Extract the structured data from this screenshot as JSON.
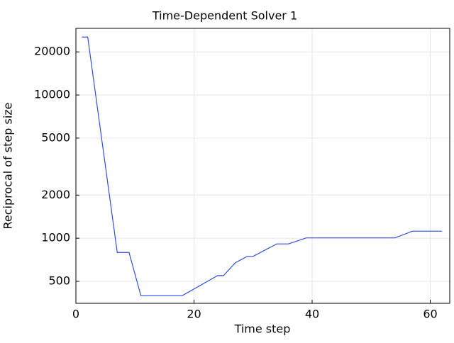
{
  "chart_data": {
    "type": "line",
    "title": "Time-Dependent Solver 1",
    "x_label": "Time step",
    "y_label": "Reciprocal of step size",
    "x": [
      1,
      2,
      7,
      9,
      11,
      18,
      24,
      25,
      27,
      29,
      30,
      34,
      36,
      39,
      54,
      57,
      62
    ],
    "series": [
      {
        "name": "Reciprocal of step size",
        "color": "#2f4fe0",
        "values": [
          25400,
          25400,
          795,
          795,
          397,
          397,
          548,
          548,
          674,
          746,
          746,
          912,
          912,
          1005,
          1005,
          1120,
          1120
        ]
      }
    ],
    "xlim": [
      0,
      63.3
    ],
    "ylim": [
      351,
      29200
    ],
    "xticks": [
      0,
      20,
      40,
      60
    ],
    "yticks": [
      500,
      1000,
      2000,
      5000,
      10000,
      20000
    ],
    "y_scale": "log",
    "grid": true
  }
}
